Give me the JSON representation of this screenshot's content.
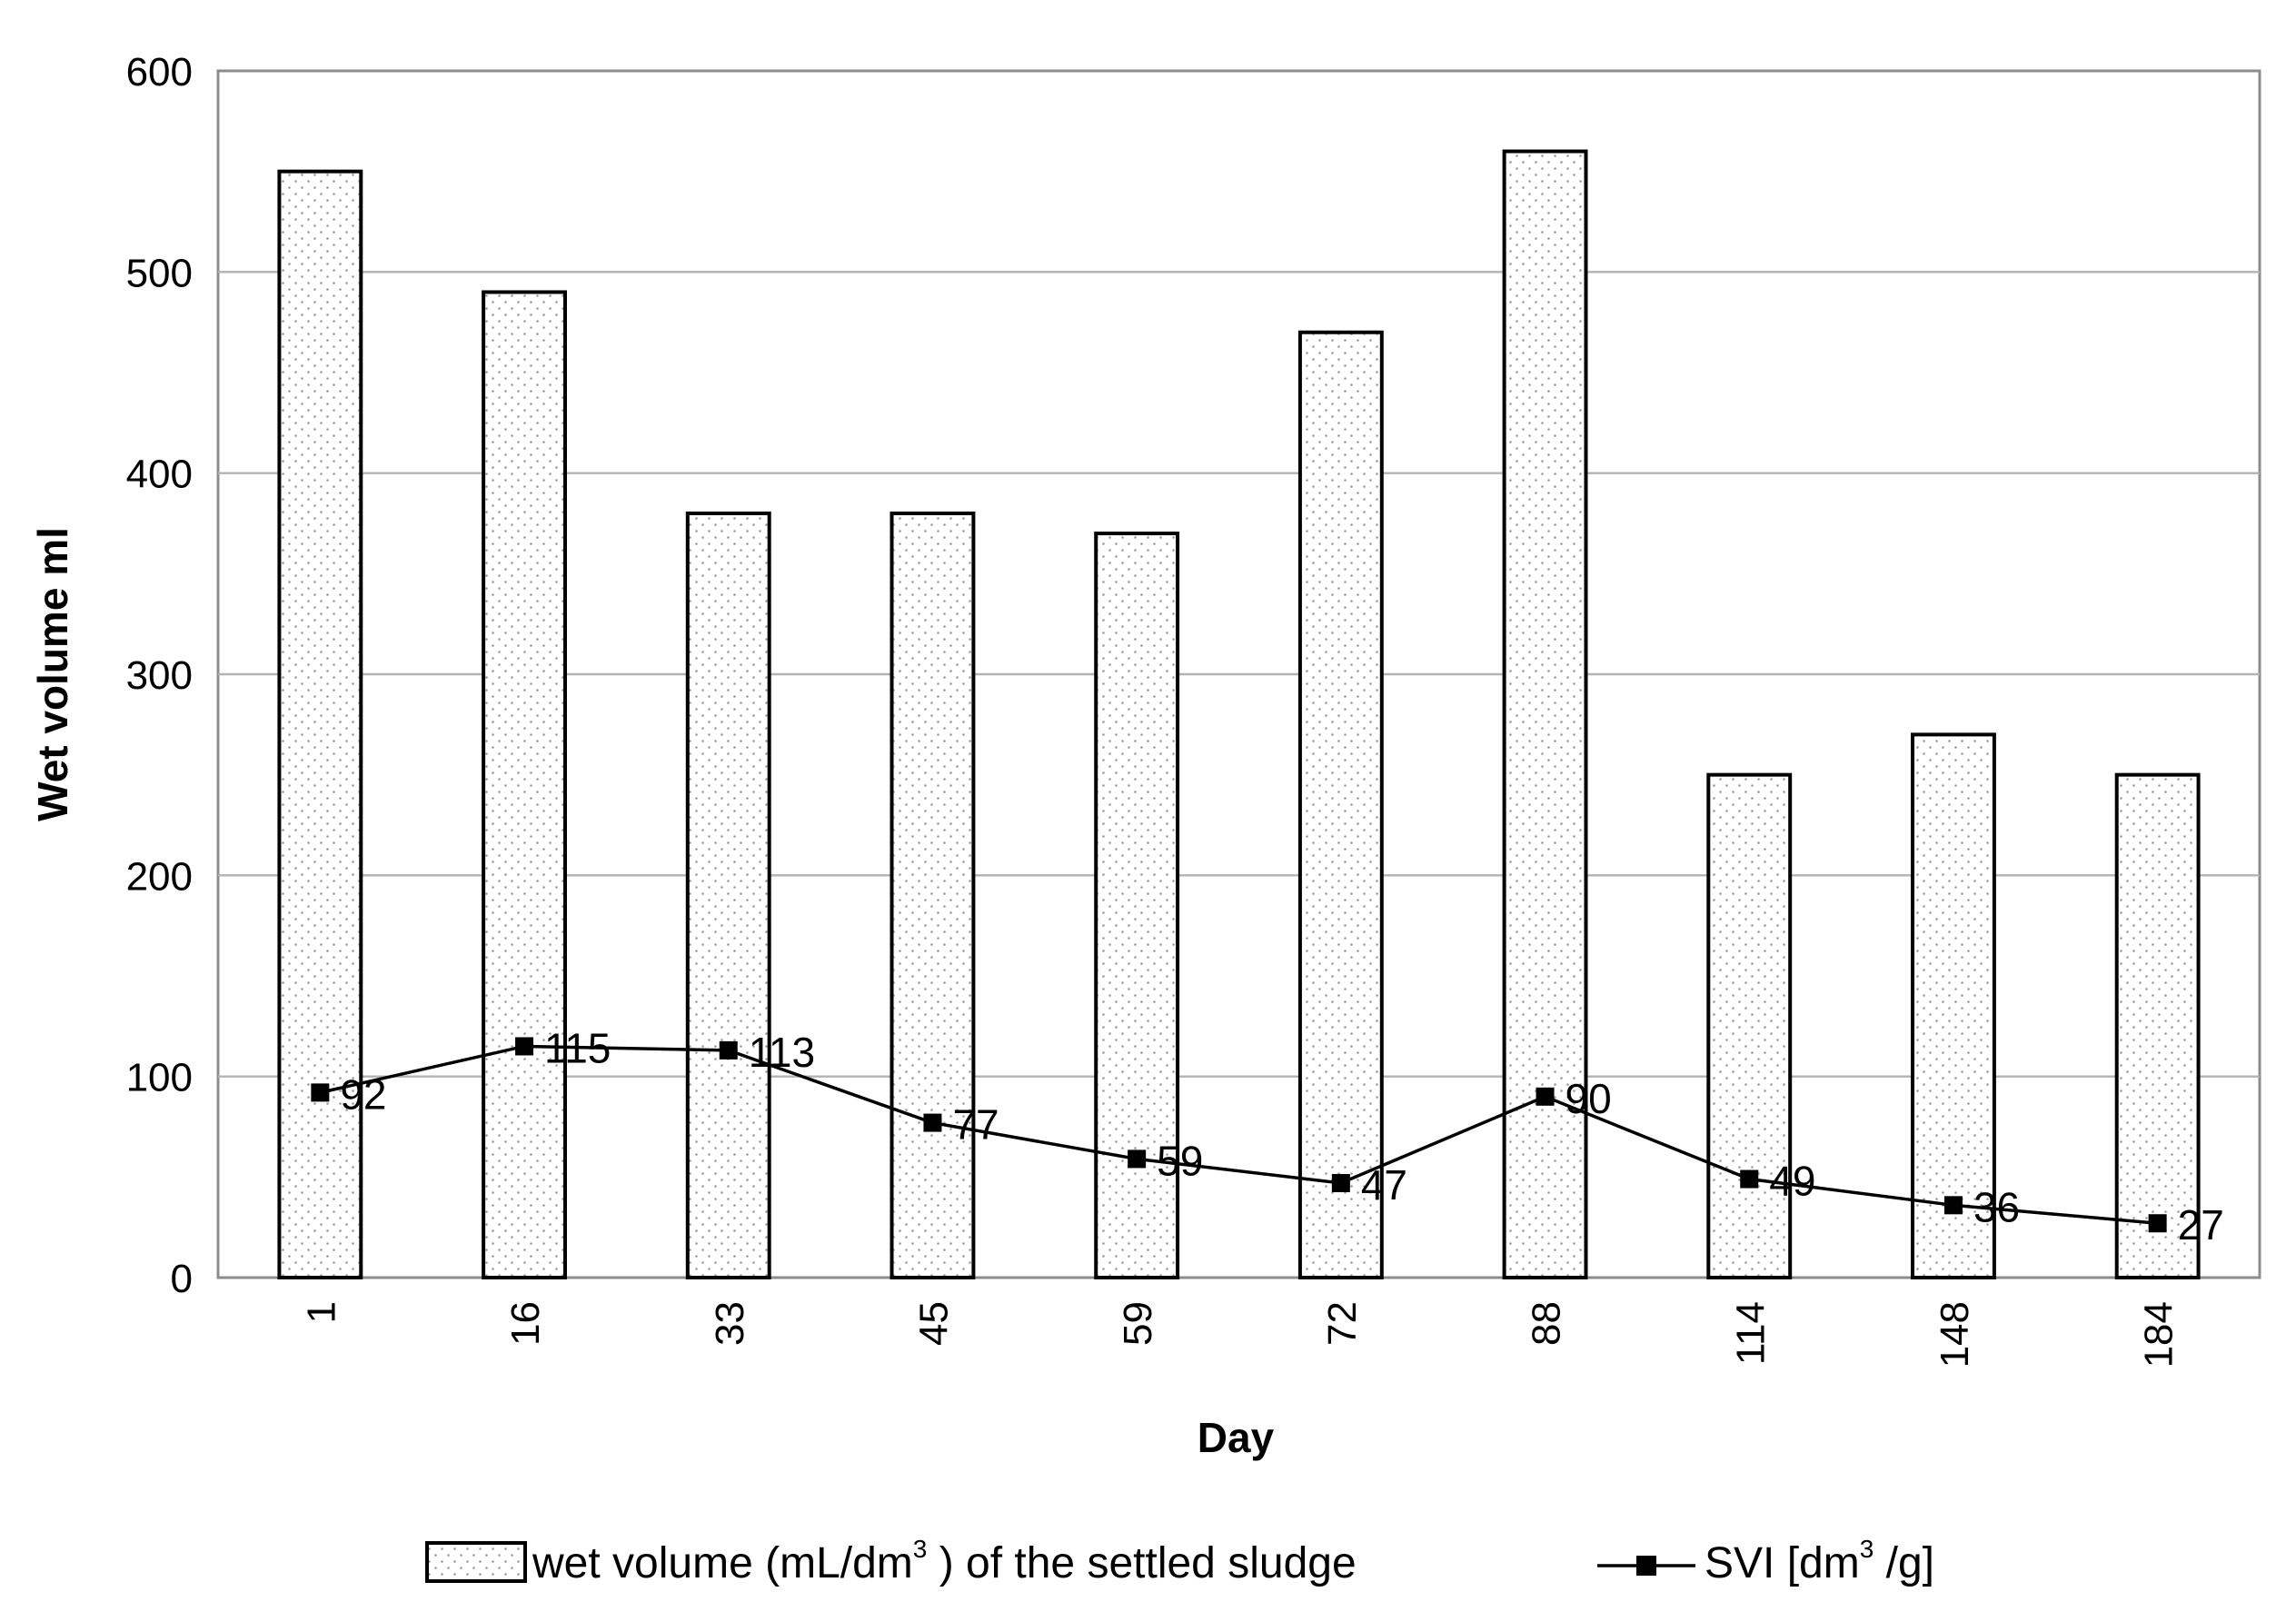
{
  "chart_data": {
    "type": "bar",
    "title": "",
    "xlabel": "Day",
    "ylabel": "Wet volume ml",
    "ylim": [
      0,
      600
    ],
    "yticks": [
      0,
      100,
      200,
      300,
      400,
      500,
      600
    ],
    "categories": [
      "1",
      "16",
      "33",
      "45",
      "59",
      "72",
      "88",
      "114",
      "148",
      "184"
    ],
    "grid": "horizontal",
    "legend_position": "bottom",
    "series": [
      {
        "name": "wet volume (mL/dm3) of the settled sludge",
        "legend_text": "wet volume (mL/dm",
        "legend_sup": "3",
        "legend_text_after": " ) of the settled sludge",
        "type": "bar",
        "values": [
          550,
          490,
          380,
          380,
          370,
          470,
          560,
          250,
          270,
          250
        ]
      },
      {
        "name": "SVI [dm3/g]",
        "legend_text": "SVI [dm",
        "legend_sup": "3",
        "legend_text_after": " /g]",
        "type": "line",
        "marker": "square",
        "values": [
          92,
          115,
          113,
          77,
          59,
          47,
          90,
          49,
          36,
          27
        ],
        "labels": [
          "92",
          "115",
          "113",
          "77",
          "59",
          "47",
          "90",
          "49",
          "36",
          "27"
        ]
      }
    ]
  }
}
